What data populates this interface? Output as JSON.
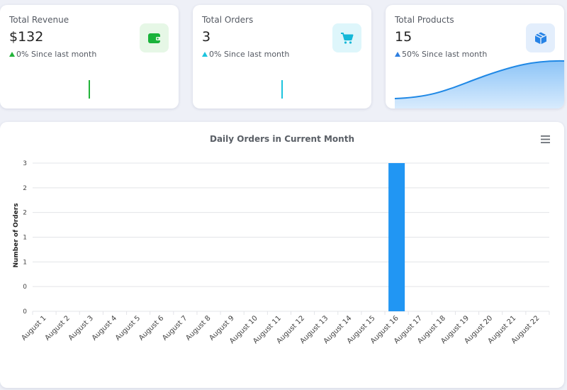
{
  "cards": {
    "revenue": {
      "label": "Total Revenue",
      "value": "$132",
      "change": "0% Since last month",
      "accent": "#22b339",
      "icon": "wallet-icon"
    },
    "orders": {
      "label": "Total Orders",
      "value": "3",
      "change": "0% Since last month",
      "accent": "#1cc4de",
      "icon": "cart-icon"
    },
    "products": {
      "label": "Total Products",
      "value": "15",
      "change": "50% Since last month",
      "accent": "#2e7fe0",
      "icon": "box-icon"
    }
  },
  "chart_data": {
    "type": "bar",
    "title": "Daily Orders in Current Month",
    "xlabel": "",
    "ylabel": "Number of Orders",
    "categories": [
      "August 1",
      "August 2",
      "August 3",
      "August 4",
      "August 5",
      "August 6",
      "August 7",
      "August 8",
      "August 9",
      "August 10",
      "August 11",
      "August 12",
      "August 13",
      "August 14",
      "August 15",
      "August 16",
      "August 17",
      "August 18",
      "August 19",
      "August 20",
      "August 21",
      "August 22"
    ],
    "values": [
      0,
      0,
      0,
      0,
      0,
      0,
      0,
      0,
      0,
      0,
      0,
      0,
      0,
      0,
      0,
      3,
      0,
      0,
      0,
      0,
      0,
      0
    ],
    "ylim": [
      0,
      3
    ],
    "ytick_labels": [
      "0",
      "0",
      "1",
      "1",
      "2",
      "2",
      "3"
    ],
    "bar_color": "#2196f3",
    "grid": true,
    "legend": "none"
  }
}
